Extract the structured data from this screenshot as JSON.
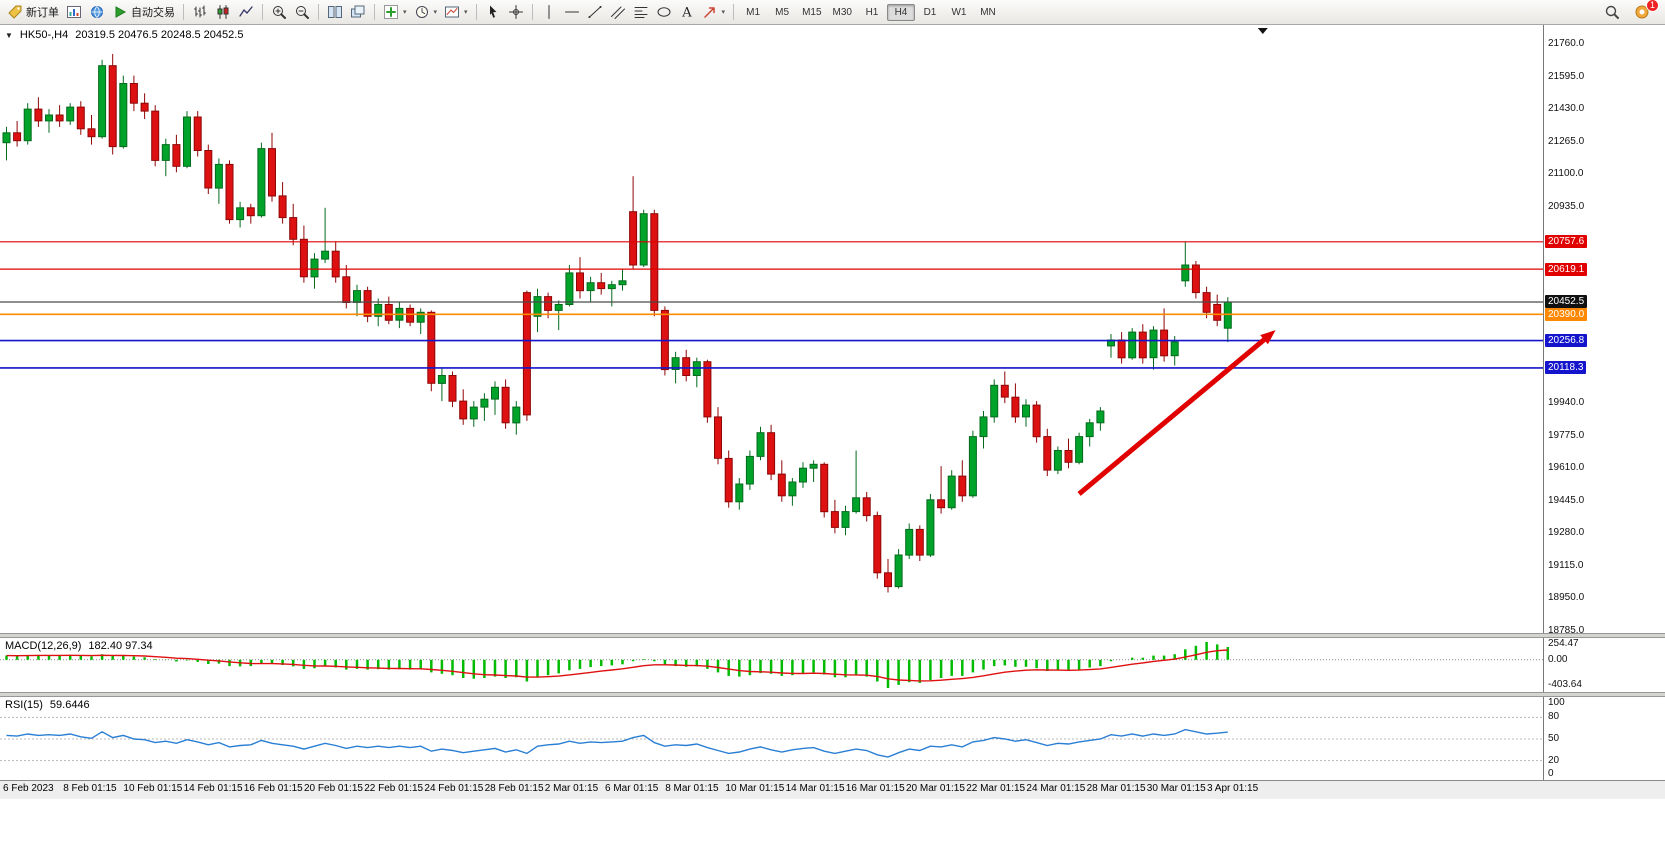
{
  "toolbar": {
    "groups": [
      [
        {
          "name": "new-order-button",
          "icon": "tag-icon",
          "label": "新订单"
        },
        {
          "name": "charts-button",
          "icon": "chart-window-icon"
        },
        {
          "name": "community-button",
          "icon": "globe-icon"
        },
        {
          "name": "auto-trading-button",
          "icon": "play-icon",
          "label": "自动交易"
        }
      ],
      [
        {
          "name": "bar-chart-type-button",
          "icon": "ohlc-bars-icon"
        },
        {
          "name": "candlestick-type-button",
          "icon": "candlestick-icon"
        },
        {
          "name": "line-chart-type-button",
          "icon": "line-chart-icon"
        }
      ],
      [
        {
          "name": "zoom-in-button",
          "icon": "zoom-in-icon"
        },
        {
          "name": "zoom-out-button",
          "icon": "zoom-out-icon"
        }
      ],
      [
        {
          "name": "tile-windows-button",
          "icon": "tile-windows-icon"
        },
        {
          "name": "cascade-windows-button",
          "icon": "cascade-windows-icon"
        }
      ],
      [
        {
          "name": "indicators-button",
          "icon": "indicators-icon",
          "caret": true
        },
        {
          "name": "periods-button",
          "icon": "clock-icon",
          "caret": true
        },
        {
          "name": "templates-button",
          "icon": "template-icon",
          "caret": true
        }
      ],
      [
        {
          "name": "cursor-button",
          "icon": "cursor-icon"
        },
        {
          "name": "crosshair-button",
          "icon": "crosshair-icon"
        }
      ],
      [
        {
          "name": "vertical-line-button",
          "icon": "vertical-line-icon"
        },
        {
          "name": "horizontal-line-button",
          "icon": "horizontal-line-icon"
        },
        {
          "name": "trendline-button",
          "icon": "trendline-icon"
        },
        {
          "name": "channel-button",
          "icon": "channel-icon"
        },
        {
          "name": "fibonacci-button",
          "icon": "fibonacci-icon"
        },
        {
          "name": "shapes-button",
          "icon": "shapes-icon"
        },
        {
          "name": "text-button",
          "icon": "text-icon"
        },
        {
          "name": "arrows-button",
          "icon": "arrow-tool-icon",
          "caret": true
        }
      ]
    ],
    "timeframes": [
      "M1",
      "M5",
      "M15",
      "M30",
      "H1",
      "H4",
      "D1",
      "W1",
      "MN"
    ],
    "active_timeframe": "H4",
    "right": [
      {
        "name": "search-button",
        "icon": "search-icon"
      },
      {
        "name": "notifications-button",
        "icon": "notification-icon",
        "badge": "1"
      }
    ]
  },
  "chart_data": [
    {
      "type": "candlestick",
      "title_text": "HK50-,H4",
      "ohlc_text": "20319.5 20476.5 20248.5 20452.5",
      "ylim": [
        18785,
        21760
      ],
      "y_ticks": [
        "21760.0",
        "21595.0",
        "21430.0",
        "21265.0",
        "21100.0",
        "20935.0",
        "19940.0",
        "19775.0",
        "19610.0",
        "19445.0",
        "19280.0",
        "19115.0",
        "18950.0",
        "18785.0"
      ],
      "hlines": [
        {
          "price": 20757.6,
          "label": "20757.6",
          "color": "#e00000",
          "width": 1.2
        },
        {
          "price": 20619.1,
          "label": "20619.1",
          "color": "#e00000",
          "width": 1.2
        },
        {
          "price": 20452.5,
          "label": "20452.5",
          "color": "#4a4a4a",
          "label_bg": "#111111",
          "width": 1.2
        },
        {
          "price": 20390.0,
          "label": "20390.0",
          "color": "#ff8800",
          "width": 1.6
        },
        {
          "price": 20256.8,
          "label": "20256.8",
          "color": "#1414cc",
          "width": 1.6
        },
        {
          "price": 20118.3,
          "label": "20118.3",
          "color": "#1414cc",
          "width": 1.6
        }
      ],
      "arrow": {
        "from_bar": 101,
        "from_price": 19480,
        "to_bar": 119.5,
        "to_price": 20310,
        "color": "#e00000"
      },
      "end_marker_bar": 118.3,
      "candles": [
        [
          21260,
          21340,
          21170,
          21310
        ],
        [
          21310,
          21370,
          21240,
          21270
        ],
        [
          21270,
          21460,
          21250,
          21430
        ],
        [
          21430,
          21490,
          21340,
          21370
        ],
        [
          21370,
          21430,
          21310,
          21400
        ],
        [
          21400,
          21450,
          21340,
          21370
        ],
        [
          21370,
          21460,
          21350,
          21440
        ],
        [
          21440,
          21470,
          21300,
          21330
        ],
        [
          21330,
          21400,
          21250,
          21290
        ],
        [
          21290,
          21680,
          21280,
          21650
        ],
        [
          21650,
          21710,
          21200,
          21240
        ],
        [
          21240,
          21600,
          21230,
          21560
        ],
        [
          21560,
          21600,
          21420,
          21460
        ],
        [
          21460,
          21510,
          21380,
          21420
        ],
        [
          21420,
          21450,
          21140,
          21170
        ],
        [
          21170,
          21280,
          21090,
          21250
        ],
        [
          21250,
          21300,
          21110,
          21140
        ],
        [
          21140,
          21420,
          21130,
          21390
        ],
        [
          21390,
          21420,
          21190,
          21220
        ],
        [
          21220,
          21250,
          21000,
          21030
        ],
        [
          21030,
          21180,
          20950,
          21150
        ],
        [
          21150,
          21170,
          20850,
          20870
        ],
        [
          20870,
          20960,
          20830,
          20930
        ],
        [
          20930,
          20950,
          20850,
          20890
        ],
        [
          20890,
          21260,
          20880,
          21230
        ],
        [
          21230,
          21310,
          20960,
          20990
        ],
        [
          20990,
          21060,
          20850,
          20880
        ],
        [
          20880,
          20950,
          20740,
          20770
        ],
        [
          20770,
          20840,
          20550,
          20580
        ],
        [
          20580,
          20700,
          20520,
          20670
        ],
        [
          20670,
          20930,
          20650,
          20710
        ],
        [
          20710,
          20760,
          20550,
          20580
        ],
        [
          20580,
          20640,
          20420,
          20450
        ],
        [
          20450,
          20540,
          20380,
          20510
        ],
        [
          20510,
          20530,
          20350,
          20380
        ],
        [
          20380,
          20470,
          20330,
          20440
        ],
        [
          20440,
          20480,
          20340,
          20360
        ],
        [
          20360,
          20450,
          20320,
          20420
        ],
        [
          20420,
          20440,
          20330,
          20350
        ],
        [
          20350,
          20420,
          20290,
          20400
        ],
        [
          20400,
          20410,
          20000,
          20040
        ],
        [
          20040,
          20120,
          19950,
          20080
        ],
        [
          20080,
          20100,
          19920,
          19950
        ],
        [
          19950,
          20010,
          19830,
          19860
        ],
        [
          19860,
          19950,
          19820,
          19920
        ],
        [
          19920,
          19990,
          19850,
          19960
        ],
        [
          19960,
          20050,
          19880,
          20020
        ],
        [
          20020,
          20060,
          19810,
          19840
        ],
        [
          19840,
          19950,
          19780,
          19920
        ],
        [
          20500,
          20510,
          19850,
          19880
        ],
        [
          20380,
          20520,
          20300,
          20480
        ],
        [
          20480,
          20500,
          20370,
          20410
        ],
        [
          20410,
          20460,
          20310,
          20440
        ],
        [
          20440,
          20640,
          20430,
          20600
        ],
        [
          20600,
          20680,
          20470,
          20510
        ],
        [
          20510,
          20580,
          20450,
          20550
        ],
        [
          20550,
          20600,
          20490,
          20520
        ],
        [
          20520,
          20560,
          20430,
          20540
        ],
        [
          20540,
          20620,
          20510,
          20560
        ],
        [
          20910,
          21090,
          20620,
          20640
        ],
        [
          20640,
          20920,
          20630,
          20900
        ],
        [
          20900,
          20920,
          20380,
          20410
        ],
        [
          20410,
          20430,
          20080,
          20110
        ],
        [
          20110,
          20200,
          20040,
          20170
        ],
        [
          20170,
          20210,
          20050,
          20080
        ],
        [
          20080,
          20170,
          20020,
          20150
        ],
        [
          20150,
          20160,
          19840,
          19870
        ],
        [
          19870,
          19920,
          19630,
          19660
        ],
        [
          19660,
          19700,
          19410,
          19440
        ],
        [
          19440,
          19560,
          19400,
          19530
        ],
        [
          19530,
          19700,
          19500,
          19670
        ],
        [
          19670,
          19820,
          19650,
          19790
        ],
        [
          19790,
          19830,
          19550,
          19580
        ],
        [
          19580,
          19650,
          19440,
          19470
        ],
        [
          19470,
          19560,
          19420,
          19540
        ],
        [
          19540,
          19640,
          19510,
          19610
        ],
        [
          19610,
          19650,
          19540,
          19630
        ],
        [
          19630,
          19640,
          19360,
          19390
        ],
        [
          19390,
          19450,
          19280,
          19310
        ],
        [
          19310,
          19420,
          19270,
          19390
        ],
        [
          19390,
          19700,
          19380,
          19460
        ],
        [
          19460,
          19490,
          19340,
          19370
        ],
        [
          19370,
          19390,
          19050,
          19080
        ],
        [
          19080,
          19150,
          18980,
          19010
        ],
        [
          19010,
          19200,
          19000,
          19170
        ],
        [
          19170,
          19330,
          19150,
          19300
        ],
        [
          19300,
          19320,
          19140,
          19170
        ],
        [
          19170,
          19480,
          19160,
          19450
        ],
        [
          19450,
          19620,
          19380,
          19410
        ],
        [
          19410,
          19600,
          19400,
          19570
        ],
        [
          19570,
          19650,
          19440,
          19470
        ],
        [
          19470,
          19800,
          19460,
          19770
        ],
        [
          19770,
          19900,
          19710,
          19870
        ],
        [
          19870,
          20060,
          19840,
          20030
        ],
        [
          20030,
          20100,
          19940,
          19970
        ],
        [
          19970,
          20040,
          19840,
          19870
        ],
        [
          19870,
          19960,
          19820,
          19930
        ],
        [
          19930,
          19950,
          19740,
          19770
        ],
        [
          19770,
          19810,
          19570,
          19600
        ],
        [
          19600,
          19720,
          19580,
          19700
        ],
        [
          19700,
          19760,
          19610,
          19640
        ],
        [
          19640,
          19790,
          19630,
          19770
        ],
        [
          19770,
          19860,
          19720,
          19840
        ],
        [
          19840,
          19920,
          19800,
          19900
        ],
        [
          20230,
          20290,
          20170,
          20260
        ],
        [
          20260,
          20300,
          20140,
          20170
        ],
        [
          20170,
          20320,
          20160,
          20300
        ],
        [
          20300,
          20340,
          20140,
          20170
        ],
        [
          20170,
          20330,
          20110,
          20310
        ],
        [
          20310,
          20420,
          20150,
          20180
        ],
        [
          20180,
          20280,
          20130,
          20250
        ],
        [
          20560,
          20760,
          20530,
          20640
        ],
        [
          20640,
          20660,
          20470,
          20500
        ],
        [
          20500,
          20530,
          20370,
          20400
        ],
        [
          20440,
          20490,
          20330,
          20360
        ],
        [
          20319.5,
          20476.5,
          20248.5,
          20452.5
        ]
      ],
      "x_labels": [
        "6 Feb 2023",
        "8 Feb 01:15",
        "10 Feb 01:15",
        "14 Feb 01:15",
        "16 Feb 01:15",
        "20 Feb 01:15",
        "22 Feb 01:15",
        "24 Feb 01:15",
        "28 Feb 01:15",
        "2 Mar 01:15",
        "6 Mar 01:15",
        "8 Mar 01:15",
        "10 Mar 01:15",
        "14 Mar 01:15",
        "16 Mar 01:15",
        "20 Mar 01:15",
        "22 Mar 01:15",
        "24 Mar 01:15",
        "28 Mar 01:15",
        "30 Mar 01:15",
        "3 Apr 01:15"
      ]
    },
    {
      "type": "bar",
      "name": "MACD(12,26,9)",
      "current_text": "182.40 97.34",
      "ylim": [
        -403.64,
        254.47
      ],
      "scale_labels": [
        "254.47",
        "0.00",
        "-403.64"
      ],
      "bar_color": "#00bb00",
      "signal_color": "#e01010",
      "histogram": [
        60,
        55,
        65,
        70,
        68,
        64,
        66,
        58,
        48,
        80,
        60,
        55,
        45,
        35,
        10,
        -5,
        -25,
        -10,
        -30,
        -60,
        -55,
        -90,
        -95,
        -90,
        -60,
        -55,
        -75,
        -95,
        -130,
        -120,
        -95,
        -110,
        -140,
        -130,
        -140,
        -135,
        -140,
        -135,
        -140,
        -130,
        -180,
        -200,
        -220,
        -260,
        -270,
        -260,
        -240,
        -260,
        -250,
        -310,
        -250,
        -220,
        -195,
        -150,
        -130,
        -105,
        -90,
        -80,
        -65,
        -20,
        10,
        -20,
        -70,
        -90,
        -100,
        -95,
        -130,
        -180,
        -230,
        -240,
        -220,
        -190,
        -200,
        -230,
        -220,
        -200,
        -180,
        -210,
        -250,
        -250,
        -220,
        -240,
        -310,
        -403.64,
        -360,
        -320,
        -330,
        -290,
        -260,
        -230,
        -230,
        -180,
        -140,
        -90,
        -80,
        -100,
        -100,
        -120,
        -160,
        -150,
        -160,
        -140,
        -110,
        -90,
        -20,
        0,
        30,
        30,
        60,
        60,
        80,
        150,
        200,
        254.47,
        220,
        182.4
      ]
    },
    {
      "type": "line",
      "name": "RSI(15)",
      "current_text": "59.6446",
      "ylim": [
        0,
        100
      ],
      "levels": [
        80,
        50,
        20
      ],
      "scale_labels": [
        "100",
        "80",
        "50",
        "20",
        "0"
      ],
      "line_color": "#2a7fd4",
      "values": [
        55,
        54,
        57,
        55,
        56,
        55,
        57,
        53,
        51,
        60,
        52,
        55,
        50,
        49,
        45,
        47,
        44,
        49,
        46,
        42,
        45,
        39,
        41,
        42,
        48,
        44,
        42,
        40,
        36,
        40,
        44,
        41,
        37,
        40,
        38,
        40,
        38,
        40,
        38,
        40,
        33,
        36,
        34,
        31,
        33,
        35,
        37,
        32,
        35,
        30,
        40,
        42,
        43,
        47,
        44,
        46,
        45,
        46,
        47,
        52,
        55,
        45,
        40,
        42,
        41,
        43,
        38,
        34,
        30,
        32,
        36,
        39,
        35,
        32,
        35,
        37,
        38,
        33,
        30,
        33,
        36,
        34,
        28,
        25,
        31,
        36,
        34,
        40,
        39,
        42,
        39,
        46,
        48,
        52,
        50,
        47,
        49,
        45,
        41,
        44,
        43,
        46,
        48,
        50,
        56,
        54,
        57,
        54,
        57,
        55,
        57,
        63,
        60,
        57,
        58,
        59.64
      ]
    }
  ]
}
